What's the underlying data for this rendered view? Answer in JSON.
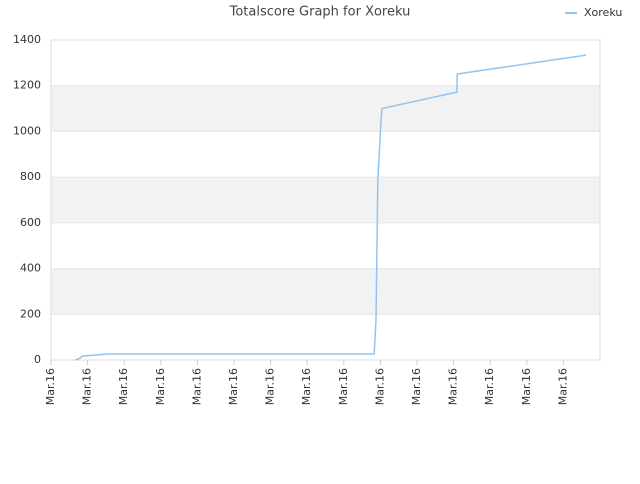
{
  "chart_data": {
    "type": "line",
    "title": "Totalscore Graph for Xoreku",
    "x": [
      0.66,
      0.79,
      0.85,
      1.56,
      8.83,
      8.88,
      8.93,
      9.0,
      9.04,
      11.09,
      11.1,
      14.62
    ],
    "series": [
      {
        "name": "Xoreku",
        "color": "#90c4f2",
        "values": [
          0,
          8,
          17,
          26,
          26,
          175,
          788,
          1000,
          1100,
          1172,
          1251,
          1334
        ]
      }
    ],
    "xlim": [
      0,
      15
    ],
    "xticks": [
      {
        "value": 0,
        "label": "Mar.16"
      },
      {
        "value": 1,
        "label": "Mar.16"
      },
      {
        "value": 2,
        "label": "Mar.16"
      },
      {
        "value": 3,
        "label": "Mar.16"
      },
      {
        "value": 4,
        "label": "Mar.16"
      },
      {
        "value": 5,
        "label": "Mar.16"
      },
      {
        "value": 6,
        "label": "Mar.16"
      },
      {
        "value": 7,
        "label": "Mar.16"
      },
      {
        "value": 8,
        "label": "Mar.16"
      },
      {
        "value": 9,
        "label": "Mar.16"
      },
      {
        "value": 10,
        "label": "Mar.16"
      },
      {
        "value": 11,
        "label": "Mar.16"
      },
      {
        "value": 12,
        "label": "Mar.16"
      },
      {
        "value": 13,
        "label": "Mar.16"
      },
      {
        "value": 14,
        "label": "Mar.16"
      }
    ],
    "ylim": [
      0,
      1400
    ],
    "yticks": [
      0,
      200,
      400,
      600,
      800,
      1000,
      1200,
      1400
    ],
    "grid": true,
    "legend": "top-right"
  }
}
